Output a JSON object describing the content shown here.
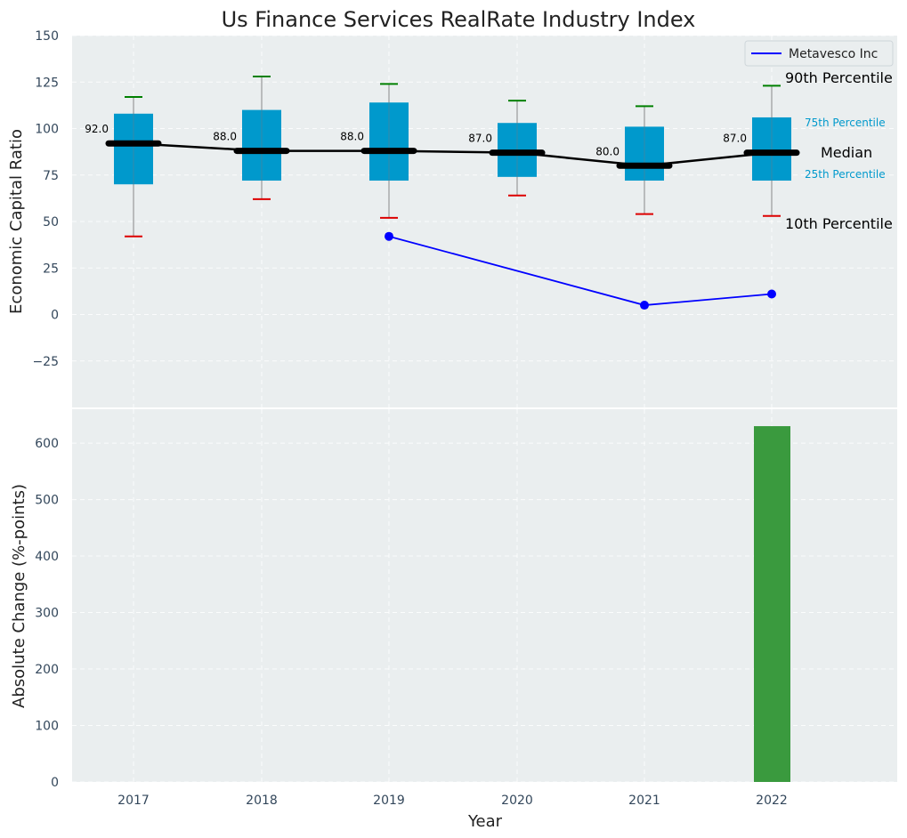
{
  "chart_data": [
    {
      "type": "box",
      "title": "Us Finance Services RealRate Industry Index",
      "xlabel": "",
      "ylabel": "Economic Capital Ratio",
      "ylim": [
        -50,
        150
      ],
      "yticks": [
        -25,
        0,
        25,
        50,
        75,
        100,
        125,
        150
      ],
      "ytick_labels": [
        "−25",
        "0",
        "25",
        "50",
        "75",
        "100",
        "125",
        "150"
      ],
      "categories": [
        "2017",
        "2018",
        "2019",
        "2020",
        "2021",
        "2022"
      ],
      "grid": true,
      "box_color": "#0099cc",
      "boxes": [
        {
          "year": "2017",
          "p10": 42,
          "p25": 70,
          "median": 92,
          "p75": 108,
          "p90": 117
        },
        {
          "year": "2018",
          "p10": 62,
          "p25": 72,
          "median": 88,
          "p75": 110,
          "p90": 128
        },
        {
          "year": "2019",
          "p10": 52,
          "p25": 72,
          "median": 88,
          "p75": 114,
          "p90": 124
        },
        {
          "year": "2020",
          "p10": 64,
          "p25": 74,
          "median": 87,
          "p75": 103,
          "p90": 115
        },
        {
          "year": "2021",
          "p10": 54,
          "p25": 72,
          "median": 80,
          "p75": 101,
          "p90": 112
        },
        {
          "year": "2022",
          "p10": 53,
          "p25": 72,
          "median": 87,
          "p75": 106,
          "p90": 123
        }
      ],
      "median_labels": [
        "92.0",
        "88.0",
        "88.0",
        "87.0",
        "80.0",
        "87.0"
      ],
      "series": [
        {
          "name": "Metavesco Inc",
          "color": "#0000ff",
          "points": [
            {
              "x": "2019",
              "y": 42
            },
            {
              "x": "2021",
              "y": 5
            },
            {
              "x": "2022",
              "y": 11
            }
          ]
        }
      ],
      "legend": {
        "position": "top-right",
        "entries": [
          "Metavesco Inc"
        ]
      },
      "annotations": {
        "p90": "90th Percentile",
        "p75": "75th Percentile",
        "median": "Median",
        "p25": "25th Percentile",
        "p10": "10th Percentile"
      },
      "colors": {
        "p90_cap": "#008000",
        "p10_cap": "#dd0000",
        "median_line": "#000000",
        "percentile_text": "#0099cc"
      }
    },
    {
      "type": "bar",
      "xlabel": "Year",
      "ylabel": "Absolute Change (%-points)",
      "ylim": [
        0,
        660
      ],
      "yticks": [
        0,
        100,
        200,
        300,
        400,
        500,
        600
      ],
      "categories": [
        "2017",
        "2018",
        "2019",
        "2020",
        "2021",
        "2022"
      ],
      "bars": [
        {
          "x": "2022",
          "value": 630
        }
      ],
      "bar_color": "#3a9a3e",
      "grid": true
    }
  ]
}
